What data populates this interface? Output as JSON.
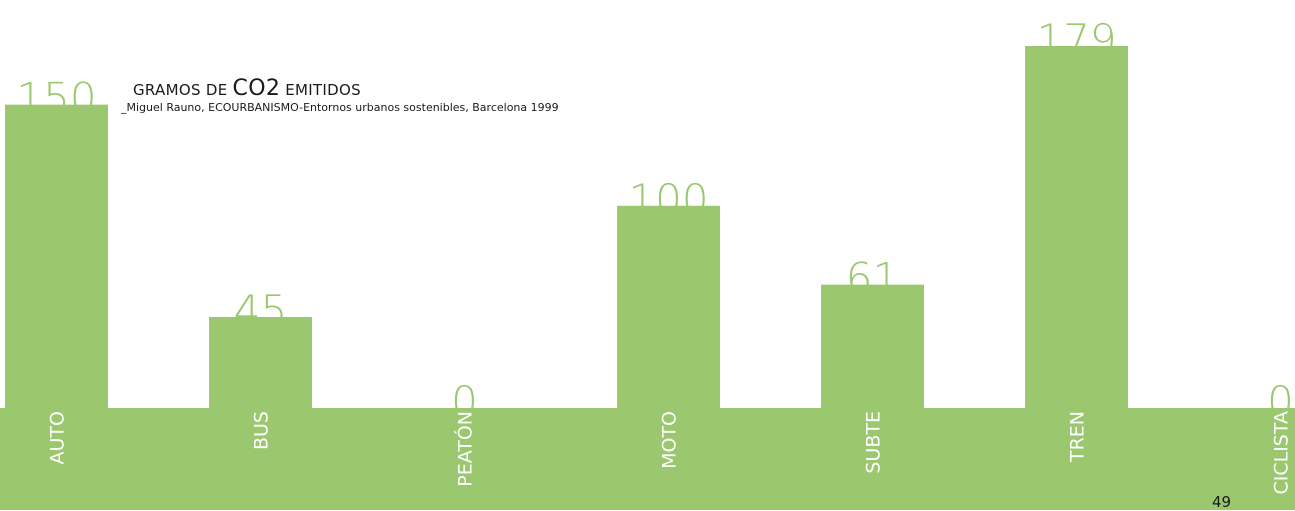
{
  "title": {
    "prefix": "GRAMOS DE ",
    "highlight": "CO2",
    "suffix": " EMITIDOS",
    "source": "_Miguel Rauno, ECOURBANISMO-Entornos urbanos sostenibles, Barcelona 1999"
  },
  "page_number": "49",
  "colors": {
    "bar": "#9bc86f",
    "label": "#ffffff",
    "value": "#9bc86f",
    "background": "#ffffff"
  },
  "chart_data": {
    "type": "bar",
    "categories": [
      "AUTO",
      "BUS",
      "PEATÓN",
      "MOTO",
      "SUBTE",
      "TREN",
      "CICLISTA"
    ],
    "values": [
      150,
      45,
      0,
      100,
      61,
      179,
      0
    ],
    "value_labels": [
      "150",
      "45",
      "0",
      "100",
      "61",
      "179",
      "0"
    ],
    "title": "GRAMOS DE CO2 EMITIDOS",
    "ylim": [
      0,
      179
    ],
    "grid": false,
    "legend": "none"
  }
}
